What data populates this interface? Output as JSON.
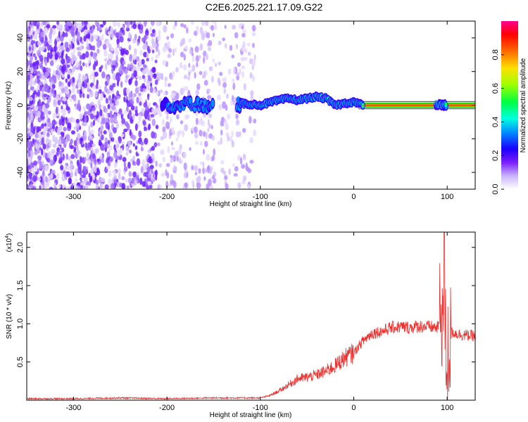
{
  "title": "C2E6.2025.221.17.09.G22",
  "chart_data": [
    {
      "type": "heatmap",
      "xlabel": "Height of straight line (km)",
      "ylabel": "Frequency (Hz)",
      "xlim": [
        -350,
        130
      ],
      "ylim": [
        -50,
        50
      ],
      "x_ticks": [
        -300,
        -200,
        -100,
        0,
        100
      ],
      "x_tick_labels": [
        "-300",
        "-200",
        "-100",
        "0",
        "100"
      ],
      "y_ticks": [
        -40,
        -20,
        0,
        20,
        40
      ],
      "y_tick_labels": [
        "-40",
        "-20",
        "0",
        "20",
        "40"
      ],
      "colorbar": {
        "label": "Normalized spectral amplitude",
        "range": [
          0,
          1
        ],
        "ticks": [
          0.0,
          0.2,
          0.4,
          0.6,
          0.8
        ],
        "tick_labels": [
          "0.0",
          "0.2",
          "0.4",
          "0.6",
          "0.8"
        ],
        "colors": [
          "#ffffff",
          "#b08cff",
          "#6a00ff",
          "#0000ff",
          "#00ffff",
          "#00ff00",
          "#ffff00",
          "#ff8800",
          "#ff0000",
          "#ff0090"
        ]
      },
      "signal_track": {
        "x": [
          -200,
          -180,
          -160,
          -140,
          -120,
          -100,
          -80,
          -70,
          -60,
          -50,
          -40,
          -30,
          -20,
          -10,
          0,
          10,
          30,
          60,
          90,
          100,
          130
        ],
        "y": [
          0,
          1,
          0,
          0,
          1,
          0,
          3,
          4,
          3,
          4,
          5,
          4,
          0,
          1,
          2,
          0,
          0,
          0,
          0,
          0,
          0
        ],
        "peak_amplitude": [
          0.35,
          0.4,
          0.3,
          0.3,
          0.4,
          0.45,
          0.55,
          0.6,
          0.65,
          0.7,
          0.75,
          0.8,
          0.9,
          0.9,
          0.95,
          0.95,
          0.95,
          0.95,
          0.95,
          0.9,
          0.95
        ]
      }
    },
    {
      "type": "line",
      "xlabel": "Height of straight line (km)",
      "ylabel": "SNR (10 * v/v)",
      "y_multiplier": "(x10",
      "y_multiplier_exp": "4",
      "y_multiplier_close": ")",
      "xlim": [
        -350,
        130
      ],
      "ylim": [
        0,
        2.2
      ],
      "x_ticks": [
        -300,
        -200,
        -100,
        0,
        100
      ],
      "x_tick_labels": [
        "-300",
        "-200",
        "-100",
        "0",
        "100"
      ],
      "y_ticks": [
        0.5,
        1.0,
        1.5,
        2.0
      ],
      "y_tick_labels": [
        "0.5",
        "1.0",
        "1.5",
        "2.0"
      ],
      "color": "#e8312e",
      "series": [
        {
          "x": [
            -350,
            -300,
            -250,
            -200,
            -150,
            -120,
            -100,
            -90,
            -80,
            -70,
            -60,
            -50,
            -40,
            -30,
            -20,
            -10,
            0,
            10,
            20,
            30,
            40,
            50,
            60,
            70,
            80,
            90,
            95,
            100,
            105,
            110,
            120,
            130
          ],
          "y": [
            0.02,
            0.02,
            0.03,
            0.02,
            0.03,
            0.03,
            0.03,
            0.06,
            0.12,
            0.2,
            0.28,
            0.3,
            0.33,
            0.38,
            0.45,
            0.55,
            0.62,
            0.78,
            0.88,
            0.9,
            0.95,
            0.96,
            0.95,
            0.97,
            0.96,
            0.95,
            1.2,
            0.5,
            0.9,
            0.87,
            0.85,
            0.84
          ]
        }
      ]
    }
  ]
}
